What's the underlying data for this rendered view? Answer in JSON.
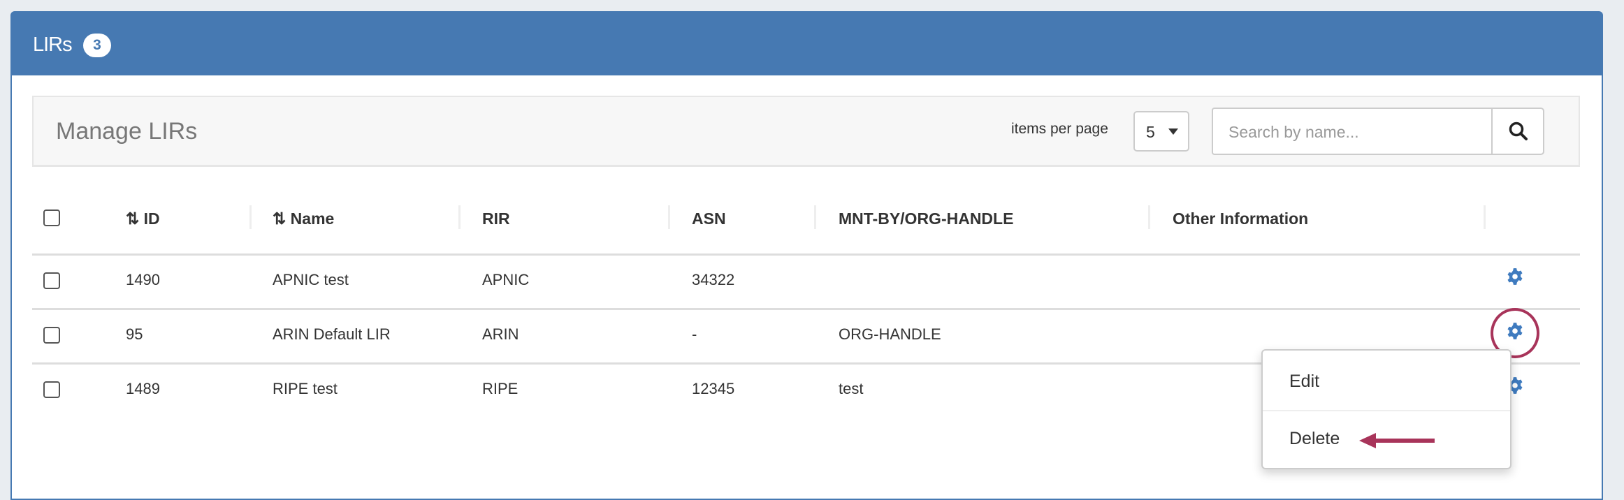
{
  "panel": {
    "title": "LIRs",
    "count": "3"
  },
  "toolbar": {
    "title": "Manage LIRs",
    "items_per_page_label": "items per page",
    "items_per_page_value": "5",
    "search_placeholder": "Search by name...",
    "search_icon": "search-icon"
  },
  "table": {
    "headers": [
      "ID",
      "Name",
      "RIR",
      "ASN",
      "MNT-BY/ORG-HANDLE",
      "Other Information"
    ],
    "rows": [
      {
        "id": "1490",
        "name": "APNIC test",
        "rir": "APNIC",
        "asn": "34322",
        "mnt": "",
        "other": ""
      },
      {
        "id": "95",
        "name": "ARIN Default LIR",
        "rir": "ARIN",
        "asn": "-",
        "mnt": "ORG-HANDLE",
        "other": ""
      },
      {
        "id": "1489",
        "name": "RIPE test",
        "rir": "RIPE",
        "asn": "12345",
        "mnt": "test",
        "other": ""
      }
    ]
  },
  "menu": {
    "items": [
      "Edit",
      "Delete"
    ]
  },
  "colors": {
    "header": "#4679b2",
    "gear": "#3f7bbf",
    "annotation": "#a8345a"
  }
}
